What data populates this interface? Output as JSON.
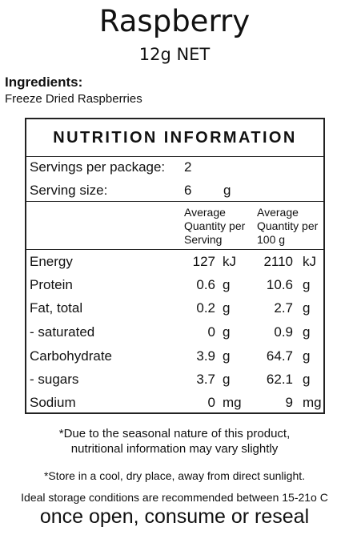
{
  "product": {
    "name": "Raspberry",
    "net": "12g NET"
  },
  "ingredients": {
    "heading": "Ingredients:",
    "list": "Freeze Dried Raspberries"
  },
  "nutrition": {
    "title": "NUTRITION INFORMATION",
    "servings_label": "Servings per package:",
    "servings_value": "2",
    "serving_size_label": "Serving size:",
    "serving_size_value": "6",
    "serving_size_unit": "g",
    "col_per_serving": [
      "Average",
      "Quantity per",
      "Serving"
    ],
    "col_per_100g": [
      "Average",
      "Quantity per",
      "100 g"
    ],
    "rows": [
      {
        "name": "Energy",
        "per_serving": "127",
        "unit_serving": "kJ",
        "per_100g": "2110",
        "unit_100g": "kJ"
      },
      {
        "name": "Protein",
        "per_serving": "0.6",
        "unit_serving": "g",
        "per_100g": "10.6",
        "unit_100g": "g"
      },
      {
        "name": "Fat, total",
        "per_serving": "0.2",
        "unit_serving": "g",
        "per_100g": "2.7",
        "unit_100g": "g"
      },
      {
        "name": "- saturated",
        "per_serving": "0",
        "unit_serving": "g",
        "per_100g": "0.9",
        "unit_100g": "g"
      },
      {
        "name": "Carbohydrate",
        "per_serving": "3.9",
        "unit_serving": "g",
        "per_100g": "64.7",
        "unit_100g": "g"
      },
      {
        "name": "- sugars",
        "per_serving": "3.7",
        "unit_serving": "g",
        "per_100g": "62.1",
        "unit_100g": "g"
      },
      {
        "name": "Sodium",
        "per_serving": "0",
        "unit_serving": "mg",
        "per_100g": "9",
        "unit_100g": "mg"
      }
    ]
  },
  "notes": {
    "seasonal_line1": "*Due to the seasonal nature of this product,",
    "seasonal_line2": "nutritional information may vary slightly",
    "store": "*Store in a cool, dry place, away from direct sunlight.",
    "ideal": "Ideal storage conditions are recommended between 15-21o C",
    "open": "once open, consume or reseal"
  }
}
